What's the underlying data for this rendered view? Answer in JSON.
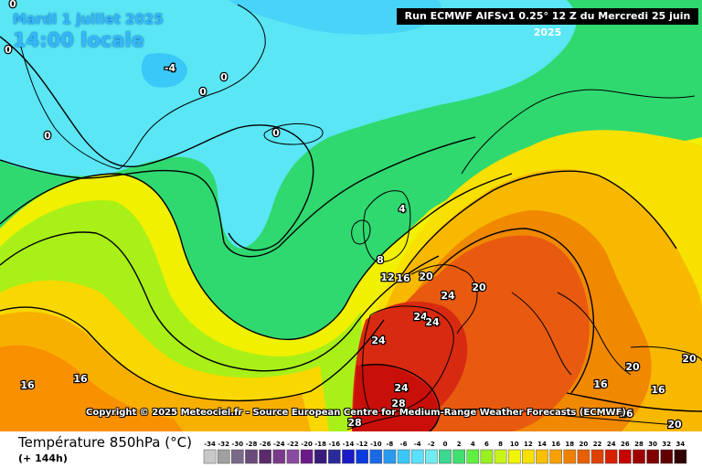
{
  "header": {
    "date": "Mardi 1 juillet 2025",
    "time": "14:00 locale",
    "run": "Run ECMWF AIFSv1 0.25° 12 Z du Mercredi 25 juin 2025"
  },
  "copyright": "Copyright © 2025 Meteociel.fr - Source European Centre for Medium-Range Weather Forecasts (ECMWF)",
  "footer": {
    "title": "Température 850hPa (°C)",
    "subtitle": "(+ 144h)"
  },
  "scale": {
    "values": [
      "-34",
      "-32",
      "-30",
      "-28",
      "-26",
      "-24",
      "-22",
      "-20",
      "-18",
      "-16",
      "-14",
      "-12",
      "-10",
      "-8",
      "-6",
      "-4",
      "-2",
      "0",
      "2",
      "4",
      "6",
      "8",
      "10",
      "12",
      "14",
      "16",
      "18",
      "20",
      "22",
      "24",
      "26",
      "28",
      "30",
      "32",
      "34"
    ],
    "colors": [
      "#c8c8c8",
      "#a0a0a0",
      "#7a6a8a",
      "#6a4a7a",
      "#5a2a6a",
      "#7a3a8a",
      "#8a4aa0",
      "#6a1a8a",
      "#3a1a7a",
      "#2a2a9a",
      "#1a1ac8",
      "#0a3ae0",
      "#1a6ae8",
      "#2a9af0",
      "#3ac8f8",
      "#5ae0ff",
      "#70ecf0",
      "#3ad890",
      "#40e070",
      "#60f040",
      "#98f020",
      "#c8f418",
      "#f0f400",
      "#f8e000",
      "#f8c000",
      "#f8a000",
      "#f08000",
      "#e86000",
      "#e04000",
      "#d82000",
      "#c80000",
      "#a00000",
      "#800000",
      "#600000",
      "#300000"
    ]
  },
  "map_labels": [
    {
      "text": "0",
      "role": "isotherm"
    },
    {
      "text": "0",
      "role": "isotherm"
    },
    {
      "text": "0",
      "role": "isotherm"
    },
    {
      "text": "-4",
      "role": "isotherm"
    },
    {
      "text": "0",
      "role": "isotherm"
    },
    {
      "text": "0",
      "role": "isotherm"
    },
    {
      "text": "0",
      "role": "isotherm"
    },
    {
      "text": "4",
      "role": "isotherm"
    },
    {
      "text": "8",
      "role": "isotherm"
    },
    {
      "text": "12",
      "role": "isotherm"
    },
    {
      "text": "16",
      "role": "isotherm"
    },
    {
      "text": "20",
      "role": "isotherm"
    },
    {
      "text": "24",
      "role": "isotherm"
    },
    {
      "text": "20",
      "role": "isotherm"
    },
    {
      "text": "24",
      "role": "isotherm"
    },
    {
      "text": "24",
      "role": "isotherm"
    },
    {
      "text": "24",
      "role": "isotherm"
    },
    {
      "text": "16",
      "role": "isotherm"
    },
    {
      "text": "16",
      "role": "isotherm"
    },
    {
      "text": "24",
      "role": "isotherm"
    },
    {
      "text": "28",
      "role": "isotherm"
    },
    {
      "text": "28",
      "role": "isotherm"
    },
    {
      "text": "20",
      "role": "isotherm"
    },
    {
      "text": "20",
      "role": "isotherm"
    },
    {
      "text": "16",
      "role": "isotherm"
    },
    {
      "text": "16",
      "role": "isotherm"
    },
    {
      "text": "16",
      "role": "isotherm"
    },
    {
      "text": "20",
      "role": "isotherm"
    }
  ]
}
